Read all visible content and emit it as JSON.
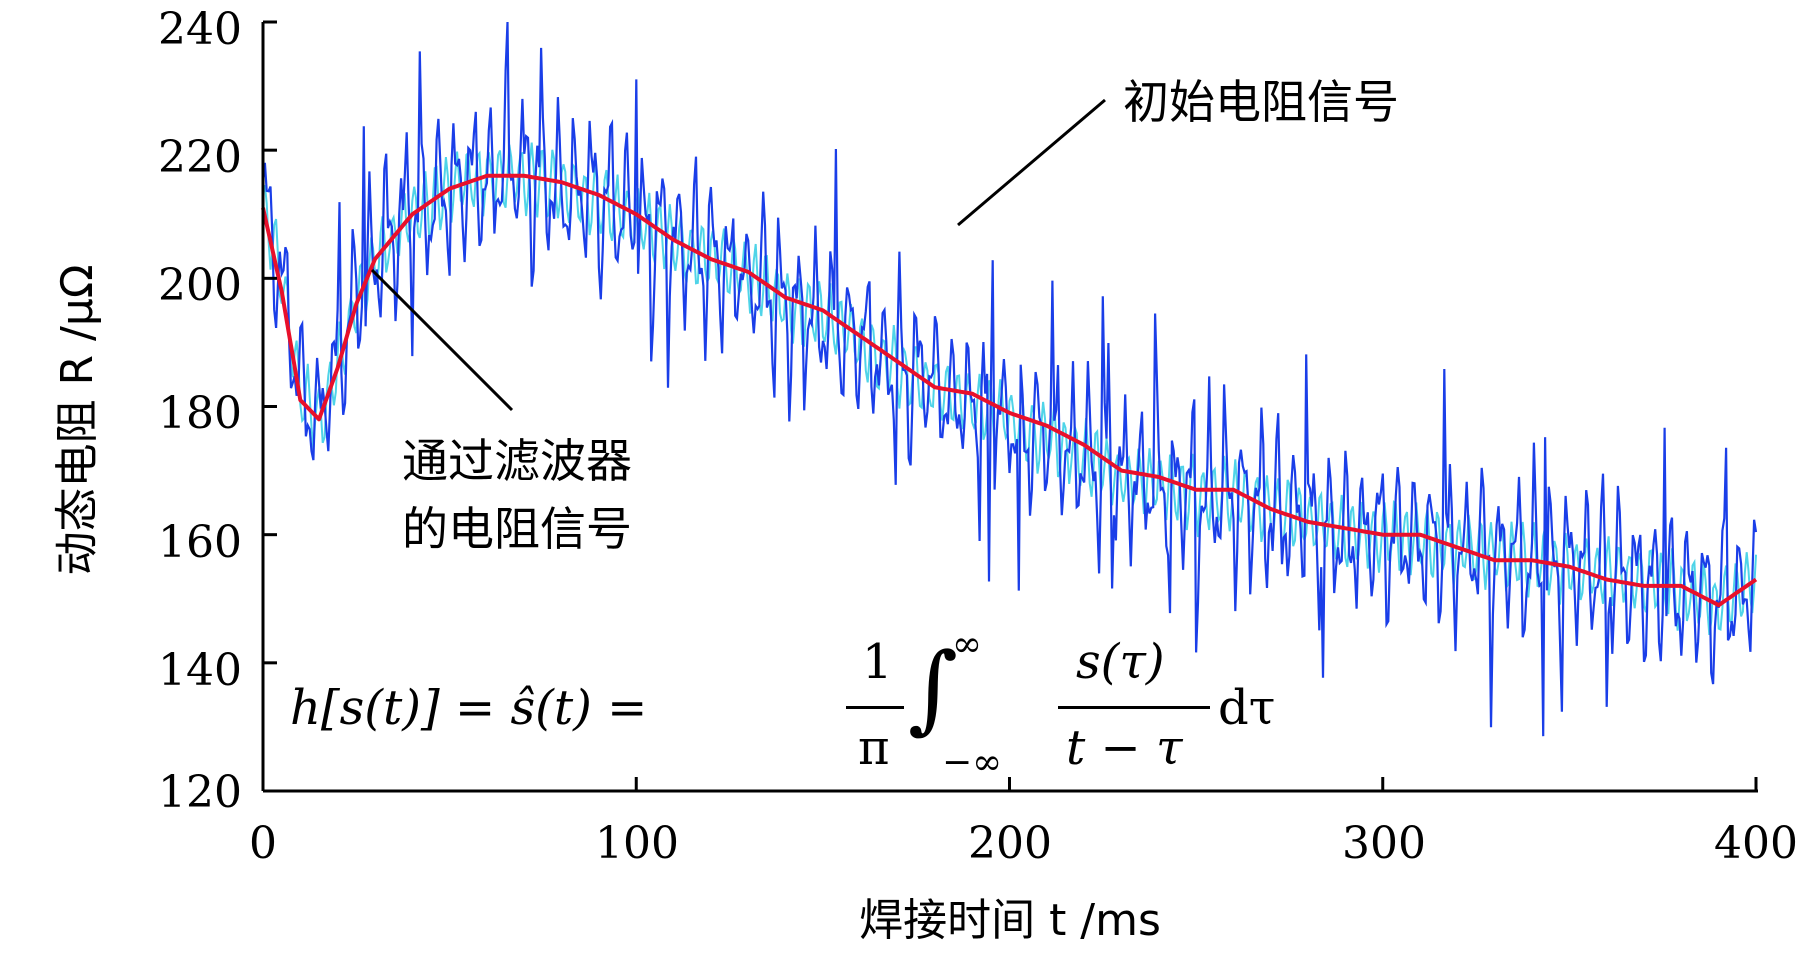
{
  "chart_data": {
    "type": "line",
    "title": "",
    "xlabel": "焊接时间 t /ms",
    "ylabel": "动态电阻 R /μΩ",
    "xlim": [
      0,
      400
    ],
    "ylim": [
      120,
      240
    ],
    "xticks": [
      "0",
      "100",
      "200",
      "300",
      "400"
    ],
    "yticks": [
      "120",
      "140",
      "160",
      "180",
      "200",
      "220",
      "240"
    ],
    "grid": false,
    "series": [
      {
        "name": "初始电阻信号",
        "color": "#1a3ee8",
        "x": [
          0,
          5,
          10,
          15,
          20,
          25,
          30,
          40,
          50,
          60,
          70,
          80,
          90,
          100,
          110,
          120,
          130,
          140,
          150,
          160,
          170,
          180,
          190,
          200,
          210,
          220,
          230,
          240,
          250,
          260,
          270,
          280,
          290,
          300,
          310,
          320,
          330,
          340,
          350,
          360,
          370,
          380,
          390,
          400
        ],
        "y": [
          212,
          200,
          182,
          178,
          186,
          197,
          203,
          210,
          214,
          216,
          216,
          214,
          212,
          209,
          206,
          203,
          200,
          196,
          194,
          190,
          186,
          183,
          180,
          178,
          175,
          172,
          169,
          168,
          166,
          166,
          164,
          162,
          160,
          160,
          159,
          158,
          157,
          156,
          155,
          154,
          153,
          151,
          149,
          153
        ]
      },
      {
        "name": "通过滤波器的电阻信号",
        "color": "#e8102b",
        "x": [
          0,
          5,
          10,
          15,
          20,
          25,
          30,
          40,
          50,
          60,
          70,
          80,
          90,
          100,
          110,
          120,
          130,
          140,
          150,
          160,
          170,
          180,
          190,
          200,
          210,
          220,
          230,
          240,
          250,
          260,
          270,
          280,
          290,
          300,
          310,
          320,
          330,
          340,
          350,
          360,
          370,
          380,
          390,
          400
        ],
        "y": [
          211,
          198,
          181,
          178,
          186,
          196,
          203,
          210,
          214,
          216,
          216,
          215,
          213,
          210,
          206,
          203,
          201,
          197,
          195,
          191,
          187,
          183,
          182,
          179,
          177,
          174,
          170,
          169,
          167,
          167,
          164,
          162,
          161,
          160,
          160,
          158,
          156,
          156,
          155,
          153,
          152,
          152,
          149,
          153
        ]
      }
    ],
    "annotations": {
      "raw": "初始电阻信号",
      "filtered_line1": "通过滤波器",
      "filtered_line2": "的电阻信号"
    },
    "formula": {
      "lhs": "h[s(t)] = ŝ(t) =",
      "frac1_num": "1",
      "frac1_den": "π",
      "integral": "∫",
      "upper": "∞",
      "lower": "−∞",
      "frac2_num": "s(τ)",
      "frac2_den": "t − τ",
      "tail": "dτ"
    }
  }
}
